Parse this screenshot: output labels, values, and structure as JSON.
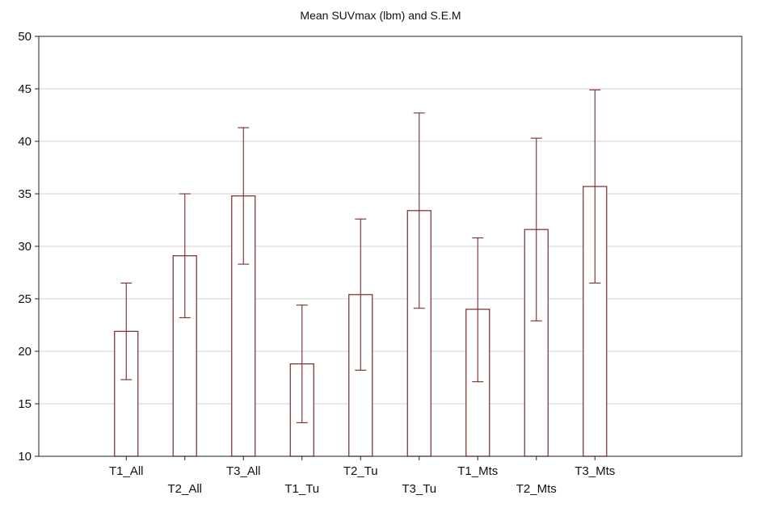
{
  "chart_data": {
    "type": "bar",
    "title": "Mean SUVmax (lbm) and S.E.M",
    "xlabel": "",
    "ylabel": "",
    "ylim": [
      10,
      50
    ],
    "yticks": [
      "50",
      "45",
      "40",
      "35",
      "30",
      "25",
      "20",
      "15",
      "10"
    ],
    "grid": true,
    "categories": [
      "T1_All",
      "T2_All",
      "T3_All",
      "T1_Tu",
      "T2_Tu",
      "T3_Tu",
      "T1_Mts",
      "T2_Mts",
      "T3_Mts"
    ],
    "values": [
      21.9,
      29.1,
      34.8,
      18.8,
      25.4,
      33.4,
      24.0,
      31.6,
      35.7
    ],
    "error_low": [
      17.3,
      23.2,
      28.3,
      13.2,
      18.2,
      24.1,
      17.1,
      22.9,
      26.5
    ],
    "error_high": [
      26.5,
      35.0,
      41.3,
      24.4,
      32.6,
      42.7,
      30.8,
      40.3,
      44.9
    ],
    "colors": {
      "bar_stroke": "#7a2a2a",
      "bar_fill": "#ffffff",
      "grid": "#d0d0d0",
      "axis": "#222222"
    }
  }
}
